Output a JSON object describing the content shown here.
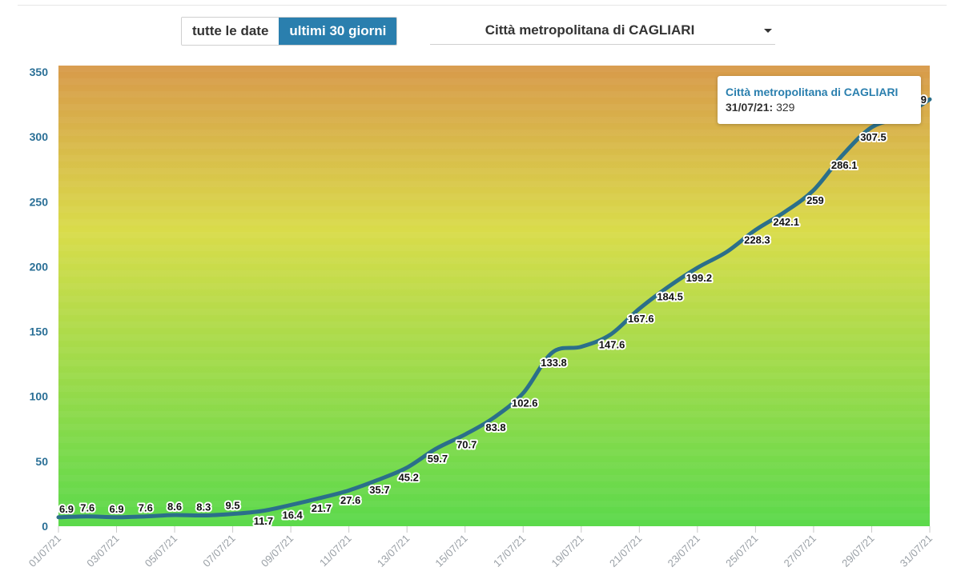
{
  "controls": {
    "date_toggle": [
      {
        "label": "tutte le date",
        "active": false
      },
      {
        "label": "ultimi 30 giorni",
        "active": true
      }
    ],
    "area_select": {
      "value": "Città metropolitana di CAGLIARI"
    }
  },
  "tooltip": {
    "title": "Città metropolitana di CAGLIARI",
    "date": "31/07/21:",
    "value": "329"
  },
  "colors": {
    "accent": "#2a7fae",
    "line": "#2b6f8a",
    "gradient_top": "#d89a4a",
    "gradient_mid": "#d9dc4a",
    "gradient_bottom": "#5bd94b"
  },
  "chart_data": {
    "type": "line",
    "series": [
      {
        "name": "Città metropolitana di CAGLIARI",
        "x": [
          "01/07/21",
          "02/07/21",
          "03/07/21",
          "04/07/21",
          "05/07/21",
          "06/07/21",
          "07/07/21",
          "08/07/21",
          "09/07/21",
          "10/07/21",
          "11/07/21",
          "12/07/21",
          "13/07/21",
          "14/07/21",
          "15/07/21",
          "16/07/21",
          "17/07/21",
          "18/07/21",
          "19/07/21",
          "20/07/21",
          "21/07/21",
          "22/07/21",
          "23/07/21",
          "24/07/21",
          "25/07/21",
          "26/07/21",
          "27/07/21",
          "28/07/21",
          "29/07/21",
          "30/07/21",
          "31/07/21"
        ],
        "values": [
          6.9,
          7.6,
          6.9,
          7.6,
          8.6,
          8.3,
          9.5,
          11.7,
          16.4,
          21.7,
          27.6,
          35.7,
          45.2,
          59.7,
          70.7,
          83.8,
          102.6,
          133.8,
          138.3,
          147.6,
          167.6,
          184.5,
          199.2,
          211.3,
          228.3,
          242.1,
          259,
          286.1,
          307.5,
          315.2,
          329
        ],
        "labels": [
          "6.9",
          "7.6",
          "6.9",
          "7.6",
          "8.6",
          "8.3",
          "9.5",
          "11.7",
          "16.4",
          "21.7",
          "27.6",
          "35.7",
          "45.2",
          "59.7",
          "70.7",
          "83.8",
          "102.6",
          "133.8",
          "",
          "147.6",
          "167.6",
          "184.5",
          "199.2",
          "",
          "228.3",
          "242.1",
          "259",
          "286.1",
          "307.5",
          "",
          "329"
        ]
      }
    ],
    "x_tick_labels": [
      "01/07/21",
      "03/07/21",
      "05/07/21",
      "07/07/21",
      "09/07/21",
      "11/07/21",
      "13/07/21",
      "15/07/21",
      "17/07/21",
      "19/07/21",
      "21/07/21",
      "23/07/21",
      "25/07/21",
      "27/07/21",
      "29/07/21",
      "31/07/21"
    ],
    "y_ticks": [
      0,
      50,
      100,
      150,
      200,
      250,
      300,
      350
    ],
    "ylim": [
      0,
      355
    ],
    "grid": false,
    "title": "",
    "xlabel": "",
    "ylabel": ""
  }
}
